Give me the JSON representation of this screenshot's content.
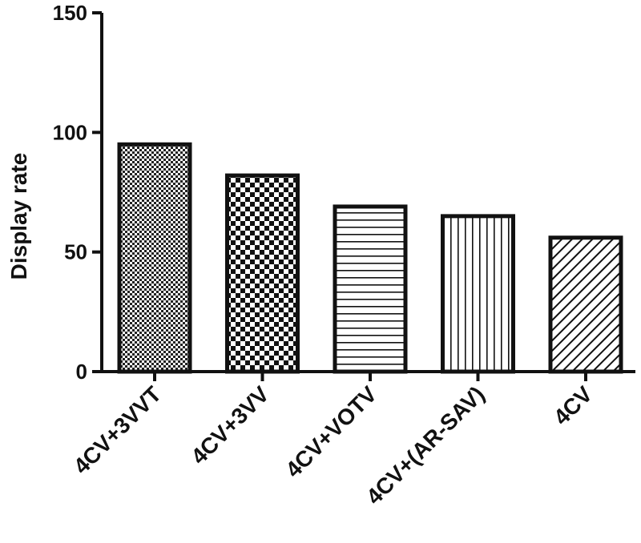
{
  "chart_data": {
    "type": "bar",
    "title": "",
    "xlabel": "",
    "ylabel": "Display rate",
    "ylim": [
      0,
      150
    ],
    "yticks": [
      0,
      50,
      100,
      150
    ],
    "grid": false,
    "categories": [
      "4CV+3VVT",
      "4CV+3VV",
      "4CV+VOTV",
      "4CV+(AR-SAV)",
      "4CV"
    ],
    "values": [
      95,
      82,
      69,
      65,
      56
    ],
    "patterns": [
      "fine-checker",
      "coarse-checker",
      "horizontal-lines",
      "vertical-lines",
      "diagonal-lines"
    ],
    "colors": {
      "stroke": "#111111",
      "background": "#ffffff"
    }
  }
}
